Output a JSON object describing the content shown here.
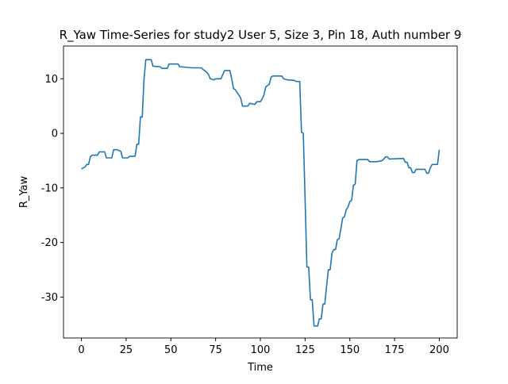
{
  "chart_data": {
    "type": "line",
    "title": "R_Yaw Time-Series for study2 User 5, Size 3, Pin 18, Auth number 9",
    "x_label": "Time",
    "y_label": "R_Yaw",
    "x": [
      0,
      2,
      3,
      4,
      5,
      6,
      9,
      10,
      13,
      14,
      17,
      18,
      20,
      22,
      23,
      26,
      27,
      30,
      31,
      32,
      33,
      34,
      35,
      36,
      39,
      40,
      44,
      45,
      48,
      49,
      54,
      55,
      62,
      67,
      68,
      70,
      71,
      72,
      74,
      75,
      78,
      80,
      83,
      84,
      85,
      86,
      88,
      89,
      90,
      93,
      94,
      97,
      98,
      100,
      101,
      102,
      103,
      105,
      106,
      107,
      112,
      113,
      115,
      119,
      120,
      122,
      123,
      124,
      125,
      126,
      127,
      128,
      129,
      130,
      132,
      133,
      134,
      135,
      136,
      137,
      138,
      139,
      140,
      141,
      142,
      143,
      144,
      145,
      146,
      147,
      148,
      149,
      150,
      151,
      152,
      153,
      154,
      155,
      160,
      161,
      165,
      168,
      169,
      170,
      171,
      172,
      180,
      181,
      182,
      183,
      184,
      185,
      186,
      187,
      192,
      193,
      194,
      195,
      196,
      199,
      200
    ],
    "series": [
      {
        "name": "R_Yaw",
        "color": "#1f77b4",
        "values": [
          -6.5,
          -6.2,
          -5.7,
          -5.7,
          -4.3,
          -4.0,
          -4.0,
          -3.4,
          -3.4,
          -4.5,
          -4.5,
          -3.0,
          -3.0,
          -3.3,
          -4.5,
          -4.5,
          -4.2,
          -4.2,
          -2.0,
          -2.0,
          3.0,
          3.0,
          10.0,
          13.5,
          13.5,
          12.3,
          12.2,
          11.9,
          11.9,
          12.7,
          12.7,
          12.2,
          12.0,
          12.0,
          11.7,
          11.2,
          10.8,
          10.0,
          9.8,
          10.0,
          10.0,
          11.5,
          11.5,
          10.0,
          8.2,
          8.0,
          7.0,
          6.5,
          5.0,
          5.0,
          5.5,
          5.3,
          5.8,
          5.8,
          6.3,
          7.0,
          8.5,
          9.0,
          10.3,
          10.5,
          10.5,
          10.0,
          9.8,
          9.7,
          9.5,
          9.5,
          0.2,
          0,
          -12,
          -24.5,
          -24.5,
          -30.5,
          -30.5,
          -35.3,
          -35.3,
          -34,
          -34,
          -31.3,
          -31.3,
          -28,
          -25,
          -25,
          -22,
          -21.3,
          -21.3,
          -19.5,
          -19.3,
          -17.5,
          -15.5,
          -15.3,
          -14,
          -13.5,
          -12.5,
          -12.3,
          -9.5,
          -9.3,
          -5.0,
          -4.8,
          -4.8,
          -5.2,
          -5.2,
          -5.0,
          -4.7,
          -4.3,
          -4.3,
          -4.7,
          -4.6,
          -5.3,
          -5.3,
          -6.3,
          -6.3,
          -7.2,
          -7.2,
          -6.6,
          -6.6,
          -7.3,
          -7.3,
          -6.3,
          -5.7,
          -5.7,
          -3.0
        ]
      }
    ],
    "xlim": [
      -10,
      210
    ],
    "xticks": [
      0,
      25,
      50,
      75,
      100,
      125,
      150,
      175,
      200
    ],
    "ylim": [
      -37.5,
      16
    ],
    "yticks": [
      -30,
      -20,
      -10,
      0,
      10
    ],
    "grid": false
  }
}
